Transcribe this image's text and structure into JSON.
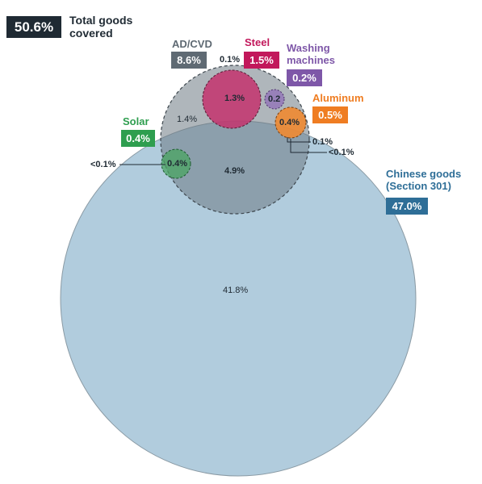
{
  "total": {
    "value": "50.6%",
    "label": "Total goods covered"
  },
  "categories": {
    "adcvd": {
      "title": "AD/CVD",
      "share": "8.6%",
      "color": "#5f6a73"
    },
    "steel": {
      "title": "Steel",
      "share": "1.5%",
      "color": "#c2185b"
    },
    "washing": {
      "title": "Washing machines",
      "share": "0.2%",
      "color": "#7e57a8"
    },
    "aluminum": {
      "title": "Aluminum",
      "share": "0.5%",
      "color": "#ef7d22"
    },
    "solar": {
      "title": "Solar",
      "share": "0.4%",
      "color": "#2e9e4f"
    },
    "chinese": {
      "title": "Chinese goods (Section 301)",
      "share": "47.0%",
      "color": "#2e6e97"
    }
  },
  "region_values": {
    "chinese_only": "41.8%",
    "adcvd_chinese": "4.9%",
    "adcvd_only": "1.4%",
    "steel_in_adcvd": "1.3%",
    "steel_outside": "0.1%",
    "washing_in_adcvd": "0.2",
    "aluminum_in_adcvd": "0.4%",
    "aluminum_edge_a": "0.1%",
    "aluminum_edge_b": "<0.1%",
    "solar_in_adcvd": "0.4%",
    "solar_outside": "<0.1%"
  }
}
